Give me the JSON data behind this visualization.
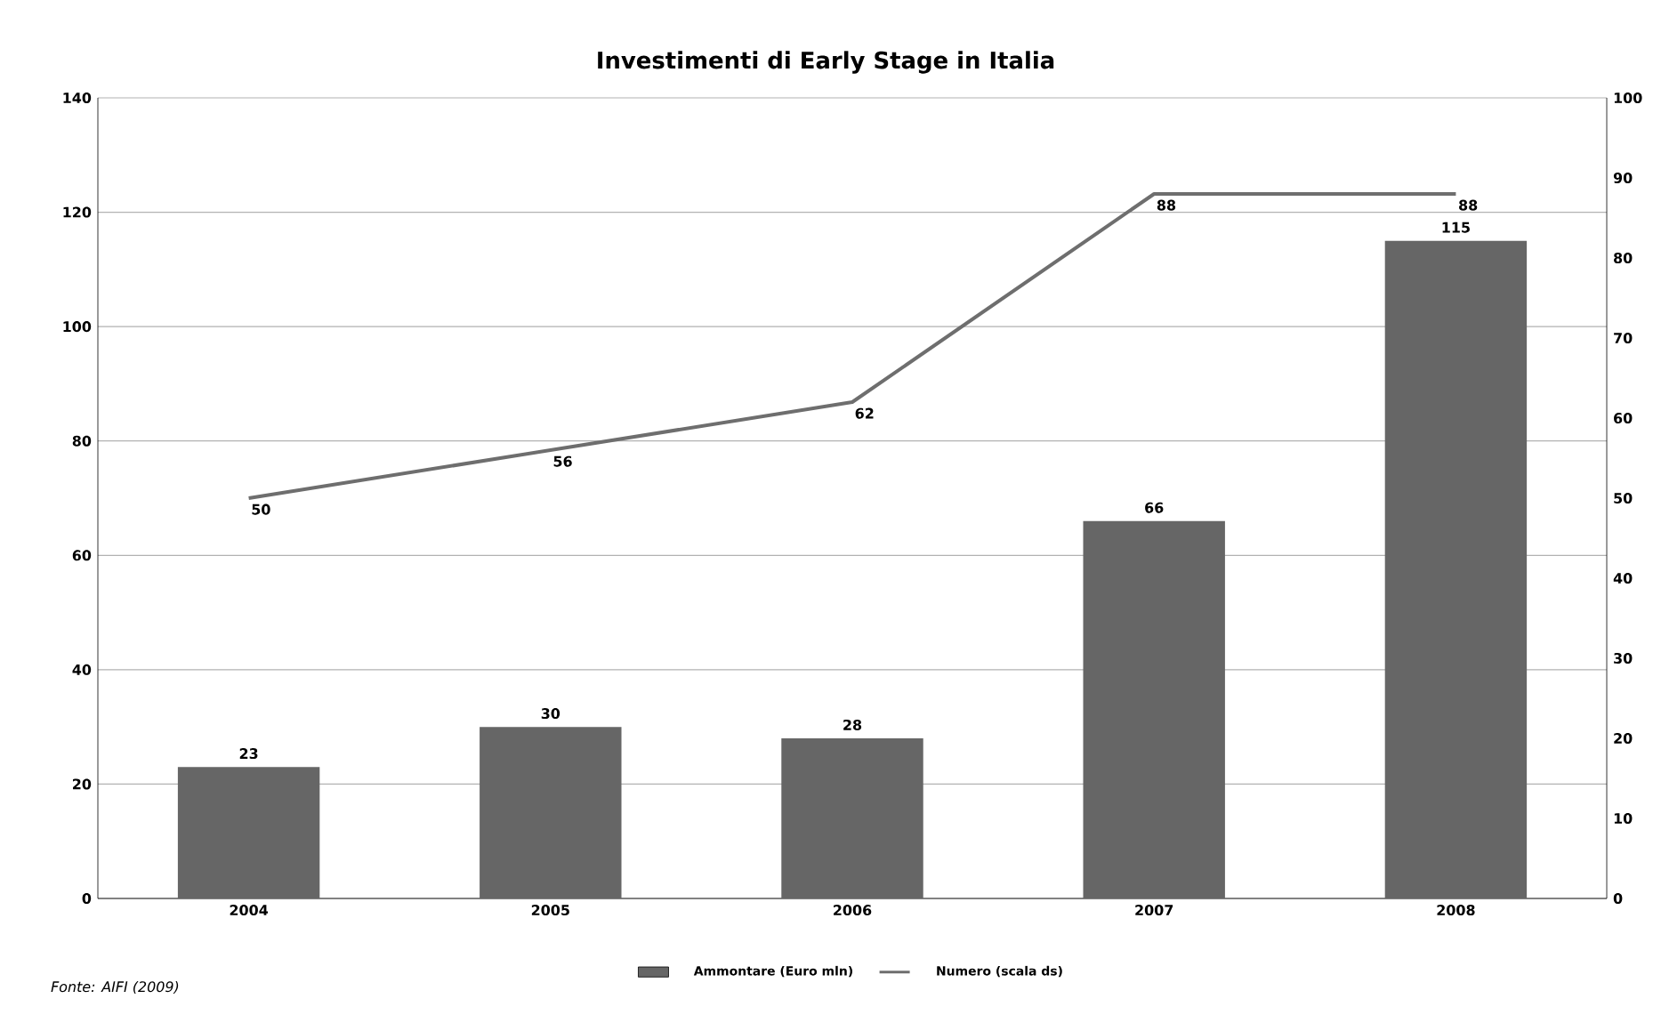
{
  "chart_data": {
    "type": "bar",
    "title": "Investimenti di Early Stage in Italia",
    "categories": [
      "2004",
      "2005",
      "2006",
      "2007",
      "2008"
    ],
    "series": [
      {
        "name": "Ammontare (Euro mln)",
        "color": "#666666",
        "values": [
          23,
          30,
          28,
          66,
          115
        ]
      },
      {
        "name": "Numero (scala ds)",
        "type": "line",
        "axis": "y2",
        "color": "#6e6e6e",
        "values": [
          50,
          56,
          62,
          88,
          88
        ]
      }
    ],
    "ylim": [
      0,
      140
    ],
    "yticks": [
      0,
      20,
      40,
      60,
      80,
      100,
      120,
      140
    ],
    "y2lim": [
      0,
      100
    ],
    "y2ticks": [
      0,
      10,
      20,
      30,
      40,
      50,
      60,
      70,
      80,
      90,
      100
    ],
    "grid": "y",
    "legend": "bottom",
    "data_labels": true,
    "annotations": [
      "Fonte: AIFI (2009)"
    ]
  }
}
